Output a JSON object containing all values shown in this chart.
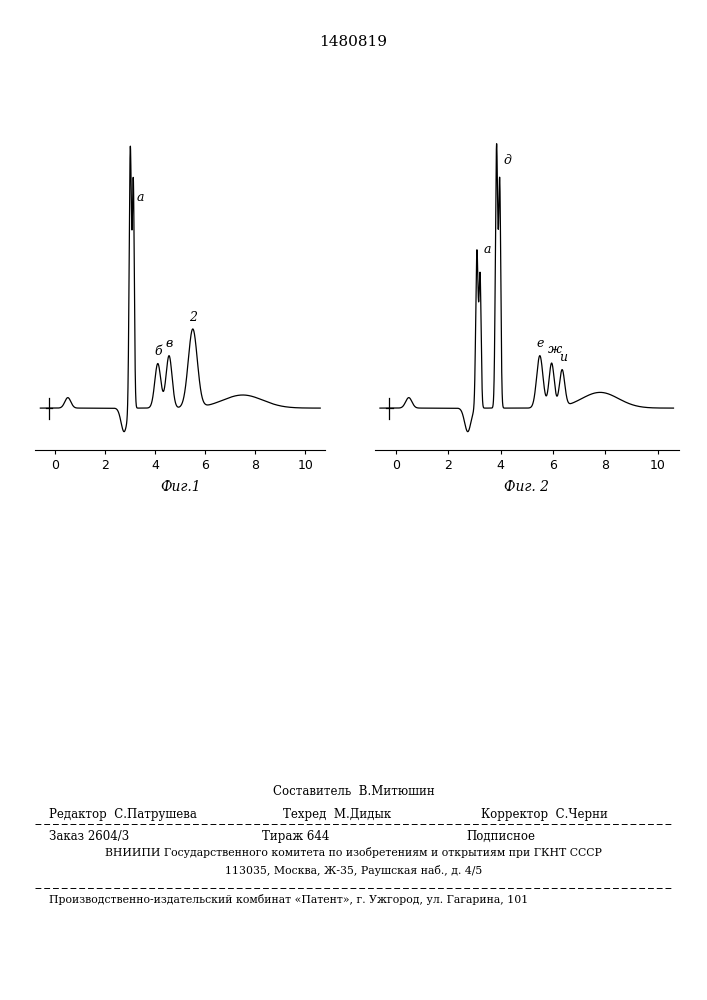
{
  "patent_number": "1480819",
  "fig1_label": "Фиг.1",
  "fig2_label": "Фиг. 2",
  "xticks": [
    0,
    2,
    4,
    6,
    8,
    10
  ],
  "footer_line1": "Составитель  В.Митюшин",
  "footer_editor": "Редактор  С.Патрушева",
  "footer_tehred": "Техред  М.Дидык",
  "footer_korrektor": "Корректор  С.Черни",
  "footer_zakaz": "Заказ 2604/3",
  "footer_tirazh": "Тираж 644",
  "footer_podpisnoe": "Подписное",
  "footer_vniipи": "ВНИИПИ Государственного комитета по изобретениям и открытиям при ГКНТ СССР",
  "footer_address": "113035, Москва, Ж-35, Раушская наб., д. 4/5",
  "footer_patent": "Производственно-издательский комбинат «Патент», г. Ужгород, ул. Гагарина, 101"
}
